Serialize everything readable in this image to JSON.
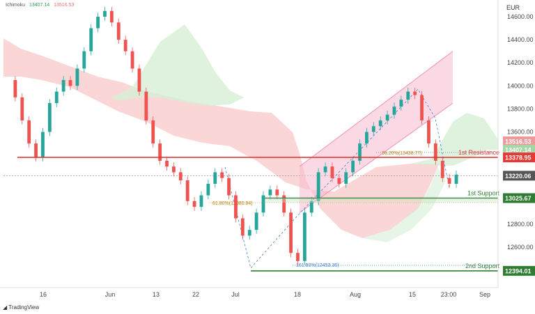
{
  "legend": {
    "name": "Ichimoku",
    "v1": "13407.14",
    "v2": "13516.53"
  },
  "currency": "EUR",
  "brand": "TradingView",
  "y_ticks": [
    "14600.00",
    "14400.00",
    "14200.00",
    "14000.00",
    "13800.00",
    "13600.00",
    "12800.00",
    "12600.00"
  ],
  "x_ticks": [
    "16",
    "Jun",
    "13",
    "22",
    "Jul",
    "18",
    "Aug",
    "15",
    "23:00",
    "Sep"
  ],
  "levels": {
    "resistance1": {
      "label": "1st Resistance",
      "value": "13378.95"
    },
    "support1": {
      "label": "1st Support",
      "value": "13025.67"
    },
    "support2": {
      "label": "2nd Support",
      "value": "12394.01"
    },
    "current": {
      "value": "13220.06"
    }
  },
  "badges": {
    "b1": "13516.53",
    "b2": "13407.14"
  },
  "fib_labels": {
    "f1": "38.20%(13438.77)",
    "f2": "61.80%(12980.84)",
    "f3": "161.80%(12453.36)"
  },
  "colors": {
    "resistance": "#e53935",
    "support": "#2e7d32",
    "current": "#555555",
    "cloud_bear": "#f8c8c8",
    "cloud_bull": "#d6efd6",
    "bull": "#26a69a",
    "bear": "#ef5350",
    "channel": "#f48fb1",
    "fib": "#3b7bd4"
  },
  "chart_data": {
    "type": "candlestick",
    "ylim": [
      12300,
      14700
    ],
    "price_series": [
      14050,
      13900,
      13700,
      13500,
      13380,
      13600,
      13850,
      13950,
      14050,
      14000,
      14150,
      14300,
      14500,
      14600,
      14650,
      14550,
      14400,
      14300,
      14150,
      13950,
      13700,
      13500,
      13350,
      13300,
      13250,
      13180,
      13000,
      12950,
      13050,
      13150,
      13250,
      13200,
      13050,
      12850,
      12700,
      12750,
      12900,
      13050,
      13100,
      13050,
      12900,
      12550,
      12480,
      12900,
      13000,
      13250,
      13300,
      13200,
      13150,
      13250,
      13350,
      13500,
      13600,
      13650,
      13700,
      13750,
      13820,
      13880,
      13950,
      13920,
      13700,
      13500,
      13350,
      13200,
      13150,
      13230
    ],
    "channel": {
      "lower_start": 12900,
      "lower_end": 13850,
      "upper_start": 13300,
      "upper_end": 14300
    }
  }
}
